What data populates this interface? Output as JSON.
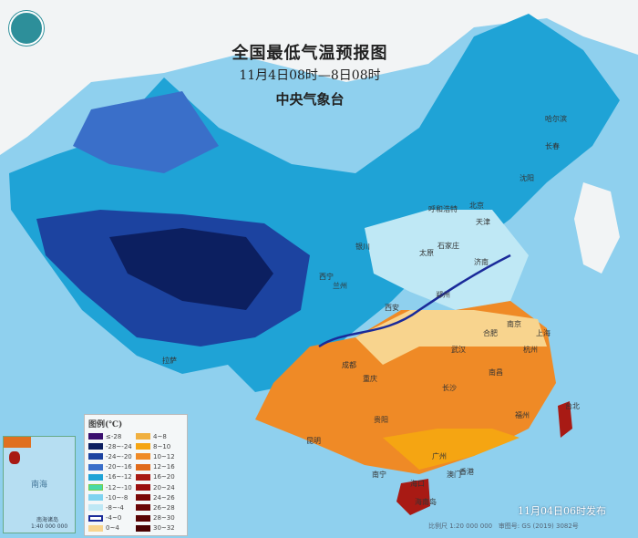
{
  "header": {
    "title": "全国最低气温预报图",
    "period": "11月4日08时—8日08时",
    "issuer": "中央气象台"
  },
  "legend": {
    "title": "图例(℃)",
    "items": [
      {
        "label": "≤-28",
        "color": "#3a0f6e"
      },
      {
        "label": "-28~-24",
        "color": "#0c1f60"
      },
      {
        "label": "-24~-20",
        "color": "#1c43a0"
      },
      {
        "label": "-20~-16",
        "color": "#3a6fc9"
      },
      {
        "label": "-16~-12",
        "color": "#1fa3d6"
      },
      {
        "label": "-12~-10",
        "color": "#48d9a8"
      },
      {
        "label": "-10~-8",
        "color": "#7fd3f0"
      },
      {
        "label": "-8~-4",
        "color": "#bfe8f5"
      },
      {
        "label": "-4~0",
        "color": "#ffffff"
      },
      {
        "label": "0~4",
        "color": "#f8d48e"
      },
      {
        "label": "4~8",
        "color": "#f0b040"
      },
      {
        "label": "8~10",
        "color": "#f5a512"
      },
      {
        "label": "10~12",
        "color": "#ef8a26"
      },
      {
        "label": "12~16",
        "color": "#e06a1a"
      },
      {
        "label": "16~20",
        "color": "#a81a14"
      },
      {
        "label": "20~24",
        "color": "#9a0f0f"
      },
      {
        "label": "24~26",
        "color": "#7a0808"
      },
      {
        "label": "26~28",
        "color": "#6a0606"
      },
      {
        "label": "28~30",
        "color": "#5a0404"
      },
      {
        "label": "30~32",
        "color": "#4a0202"
      }
    ]
  },
  "cities": [
    {
      "name": "哈尔滨"
    },
    {
      "name": "长春"
    },
    {
      "name": "沈阳"
    },
    {
      "name": "北京"
    },
    {
      "name": "天津"
    },
    {
      "name": "呼和浩特"
    },
    {
      "name": "石家庄"
    },
    {
      "name": "太原"
    },
    {
      "name": "济南"
    },
    {
      "name": "银川"
    },
    {
      "name": "西宁"
    },
    {
      "name": "兰州"
    },
    {
      "name": "西安"
    },
    {
      "name": "郑州"
    },
    {
      "name": "南京"
    },
    {
      "name": "上海"
    },
    {
      "name": "合肥"
    },
    {
      "name": "杭州"
    },
    {
      "name": "武汉"
    },
    {
      "name": "成都"
    },
    {
      "name": "重庆"
    },
    {
      "name": "长沙"
    },
    {
      "name": "南昌"
    },
    {
      "name": "福州"
    },
    {
      "name": "拉萨"
    },
    {
      "name": "贵阳"
    },
    {
      "name": "昆明"
    },
    {
      "name": "南宁"
    },
    {
      "name": "广州"
    },
    {
      "name": "香港"
    },
    {
      "name": "澳门"
    },
    {
      "name": "台北"
    },
    {
      "name": "海口"
    },
    {
      "name": "海南岛"
    }
  ],
  "inset": {
    "sea": "南海",
    "islands": "南海诸岛",
    "scale": "1:40 000 000"
  },
  "footer": {
    "published": "11月04日06时发布",
    "scale": "比例尺 1:20 000 000",
    "map_number": "审图号: GS (2019) 3082号"
  }
}
